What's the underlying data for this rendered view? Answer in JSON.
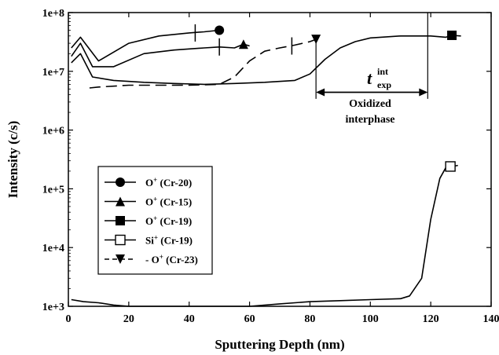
{
  "chart_data": {
    "type": "line",
    "xlabel": "Sputtering Depth (nm)",
    "ylabel": "Intensity (c/s)",
    "xlim": [
      0,
      140
    ],
    "ylim": [
      1000,
      100000000
    ],
    "yscale": "log",
    "x_ticks": [
      0,
      20,
      40,
      60,
      80,
      100,
      120,
      140
    ],
    "x_tick_labels": [
      "0",
      "20",
      "40",
      "60",
      "80",
      "100",
      "120",
      "140"
    ],
    "y_ticks": [
      1000,
      10000,
      100000,
      1000000,
      10000000,
      100000000
    ],
    "y_tick_labels": [
      "1e+3",
      "1e+4",
      "1e+5",
      "1e+6",
      "1e+7",
      "1e+8"
    ],
    "legend": {
      "position": "left-middle",
      "entries": [
        {
          "marker": "circle",
          "sup": "+",
          "prefix": "",
          "ion": "O",
          "label": " (Cr-20)"
        },
        {
          "marker": "triangle-up",
          "sup": "+",
          "prefix": "",
          "ion": "O",
          "label": " (Cr-15)"
        },
        {
          "marker": "square",
          "sup": "+",
          "prefix": "",
          "ion": "O",
          "label": " (Cr-19)"
        },
        {
          "marker": "open-square",
          "sup": "+",
          "prefix": "",
          "ion": "Si",
          "label": " (Cr-19)"
        },
        {
          "marker": "triangle-down",
          "sup": "+",
          "prefix": "- ",
          "ion": "O",
          "label": " (Cr-23)"
        }
      ]
    },
    "series": [
      {
        "name": "O+ (Cr-20)",
        "marker": "circle",
        "dash": "solid",
        "x": [
          1,
          4,
          10,
          20,
          30,
          40,
          45,
          50
        ],
        "y": [
          25000000,
          38000000,
          15000000,
          30000000,
          40000000,
          45000000,
          47000000,
          50000000
        ]
      },
      {
        "name": "O+ (Cr-15)",
        "marker": "triangle-up",
        "dash": "solid",
        "x": [
          1,
          4,
          8,
          15,
          25,
          35,
          45,
          50,
          55,
          58,
          60
        ],
        "y": [
          18000000,
          30000000,
          12000000,
          12000000,
          20000000,
          23000000,
          25000000,
          26000000,
          25000000,
          29000000,
          27000000
        ]
      },
      {
        "name": "O+ (Cr-19)",
        "marker": "square",
        "dash": "solid",
        "x": [
          1,
          4,
          8,
          15,
          25,
          35,
          45,
          55,
          65,
          75,
          80,
          85,
          90,
          95,
          100,
          110,
          120,
          125,
          127,
          130
        ],
        "y": [
          14000000,
          20000000,
          8000000,
          7000000,
          6500000,
          6200000,
          6000000,
          6200000,
          6500000,
          7000000,
          9000000,
          16000000,
          25000000,
          32000000,
          37000000,
          40000000,
          40000000,
          38000000,
          41000000,
          40000000
        ]
      },
      {
        "name": "Si+ (Cr-19)",
        "marker": "open-square",
        "dash": "solid",
        "x": [
          1,
          5,
          10,
          15,
          20,
          30,
          40,
          50,
          60,
          70,
          80,
          90,
          100,
          110,
          113,
          117,
          120,
          123,
          125,
          127,
          129
        ],
        "y": [
          1300,
          1200,
          1150,
          1050,
          1000,
          1000,
          1000,
          1000,
          1000,
          1100,
          1200,
          1250,
          1300,
          1350,
          1500,
          3000,
          30000,
          150000,
          230000,
          240000,
          250000
        ]
      },
      {
        "name": "O+ (Cr-23)",
        "marker": "triangle-down",
        "dash": "dashed",
        "x": [
          7,
          10,
          20,
          30,
          40,
          50,
          55,
          60,
          65,
          70,
          75,
          80,
          82
        ],
        "y": [
          5200000,
          5400000,
          5800000,
          5800000,
          5800000,
          6000000,
          8000000,
          15000000,
          22000000,
          25000000,
          28000000,
          32000000,
          35000000
        ]
      }
    ],
    "markers": [
      {
        "series": 0,
        "x": 50,
        "y": 50000000
      },
      {
        "series": 1,
        "x": 58,
        "y": 29000000
      },
      {
        "series": 2,
        "x": 127,
        "y": 41000000
      },
      {
        "series": 3,
        "x": 126.5,
        "y": 240000
      },
      {
        "series": 4,
        "x": 82,
        "y": 35000000
      }
    ],
    "tick_marks": [
      {
        "x": 42,
        "y": 45000000
      },
      {
        "x": 50,
        "y": 26000000
      },
      {
        "x": 74,
        "y": 27000000
      }
    ],
    "annotation": {
      "base": "t",
      "sup": "int",
      "sub": "exp",
      "label_line1": "Oxidized",
      "label_line2": "interphase",
      "x_start": 82,
      "x_end": 119,
      "arrow_y": 4400000,
      "bar_top": 40000000,
      "bar_bottom": 3400000
    }
  }
}
